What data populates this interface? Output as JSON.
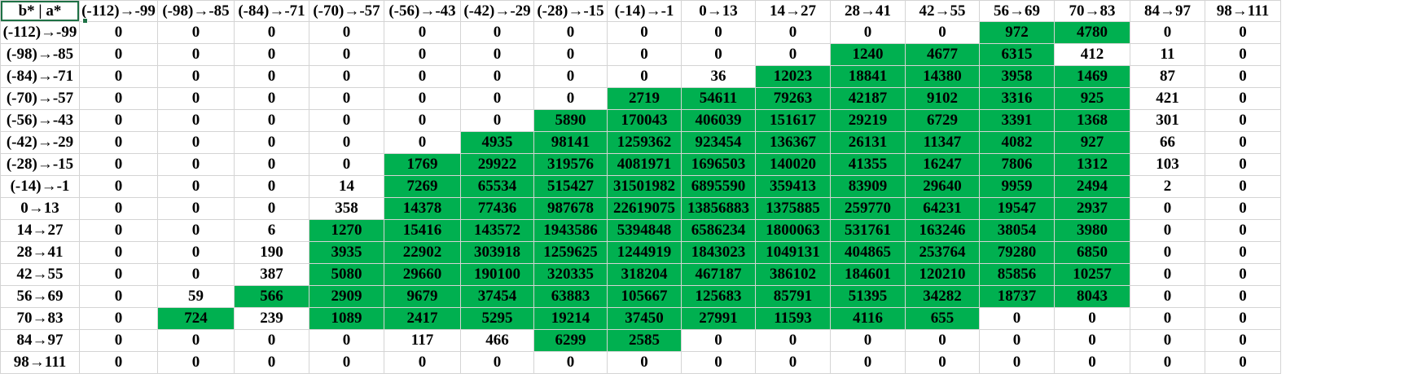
{
  "sheet": {
    "corner_label": "b* | a*",
    "col_headers": [
      "(-112)→-99",
      "(-98)→-85",
      "(-84)→-71",
      "(-70)→-57",
      "(-56)→-43",
      "(-42)→-29",
      "(-28)→-15",
      "(-14)→-1",
      "0→13",
      "14→27",
      "28→41",
      "42→55",
      "56→69",
      "70→83",
      "84→97",
      "98→111"
    ],
    "rows": [
      {
        "label": "(-112)→-99",
        "values": [
          "0",
          "0",
          "0",
          "0",
          "0",
          "0",
          "0",
          "0",
          "0",
          "0",
          "0",
          "0",
          "972",
          "4780",
          "0",
          "0"
        ]
      },
      {
        "label": "(-98)→-85",
        "values": [
          "0",
          "0",
          "0",
          "0",
          "0",
          "0",
          "0",
          "0",
          "0",
          "0",
          "1240",
          "4677",
          "6315",
          "412",
          "11",
          "0"
        ]
      },
      {
        "label": "(-84)→-71",
        "values": [
          "0",
          "0",
          "0",
          "0",
          "0",
          "0",
          "0",
          "0",
          "36",
          "12023",
          "18841",
          "14380",
          "3958",
          "1469",
          "87",
          "0"
        ]
      },
      {
        "label": "(-70)→-57",
        "values": [
          "0",
          "0",
          "0",
          "0",
          "0",
          "0",
          "0",
          "2719",
          "54611",
          "79263",
          "42187",
          "9102",
          "3316",
          "925",
          "421",
          "0"
        ]
      },
      {
        "label": "(-56)→-43",
        "values": [
          "0",
          "0",
          "0",
          "0",
          "0",
          "0",
          "5890",
          "170043",
          "406039",
          "151617",
          "29219",
          "6729",
          "3391",
          "1368",
          "301",
          "0"
        ]
      },
      {
        "label": "(-42)→-29",
        "values": [
          "0",
          "0",
          "0",
          "0",
          "0",
          "4935",
          "98141",
          "1259362",
          "923454",
          "136367",
          "26131",
          "11347",
          "4082",
          "927",
          "66",
          "0"
        ]
      },
      {
        "label": "(-28)→-15",
        "values": [
          "0",
          "0",
          "0",
          "0",
          "1769",
          "29922",
          "319576",
          "4081971",
          "1696503",
          "140020",
          "41355",
          "16247",
          "7806",
          "1312",
          "103",
          "0"
        ]
      },
      {
        "label": "(-14)→-1",
        "values": [
          "0",
          "0",
          "0",
          "14",
          "7269",
          "65534",
          "515427",
          "31501982",
          "6895590",
          "359413",
          "83909",
          "29640",
          "9959",
          "2494",
          "2",
          "0"
        ]
      },
      {
        "label": "0→13",
        "values": [
          "0",
          "0",
          "0",
          "358",
          "14378",
          "77436",
          "987678",
          "22619075",
          "13856883",
          "1375885",
          "259770",
          "64231",
          "19547",
          "2937",
          "0",
          "0"
        ]
      },
      {
        "label": "14→27",
        "values": [
          "0",
          "0",
          "6",
          "1270",
          "15416",
          "143572",
          "1943586",
          "5394848",
          "6586234",
          "1800063",
          "531761",
          "163246",
          "38054",
          "3980",
          "0",
          "0"
        ]
      },
      {
        "label": "28→41",
        "values": [
          "0",
          "0",
          "190",
          "3935",
          "22902",
          "303918",
          "1259625",
          "1244919",
          "1843023",
          "1049131",
          "404865",
          "253764",
          "79280",
          "6850",
          "0",
          "0"
        ]
      },
      {
        "label": "42→55",
        "values": [
          "0",
          "0",
          "387",
          "5080",
          "29660",
          "190100",
          "320335",
          "318204",
          "467187",
          "386102",
          "184601",
          "120210",
          "85856",
          "10257",
          "0",
          "0"
        ]
      },
      {
        "label": "56→69",
        "values": [
          "0",
          "59",
          "566",
          "2909",
          "9679",
          "37454",
          "63883",
          "105667",
          "125683",
          "85791",
          "51395",
          "34282",
          "18737",
          "8043",
          "0",
          "0"
        ]
      },
      {
        "label": "70→83",
        "values": [
          "0",
          "724",
          "239",
          "1089",
          "2417",
          "5295",
          "19214",
          "37450",
          "27991",
          "11593",
          "4116",
          "655",
          "0",
          "0",
          "0",
          "0"
        ]
      },
      {
        "label": "84→97",
        "values": [
          "0",
          "0",
          "0",
          "0",
          "117",
          "466",
          "6299",
          "2585",
          "0",
          "0",
          "0",
          "0",
          "0",
          "0",
          "0",
          "0"
        ]
      },
      {
        "label": "98→111",
        "values": [
          "0",
          "0",
          "0",
          "0",
          "0",
          "0",
          "0",
          "0",
          "0",
          "0",
          "0",
          "0",
          "0",
          "0",
          "0",
          "0"
        ]
      }
    ],
    "highlight_color": "#00b050",
    "highlighted_cells": [
      [
        0,
        12
      ],
      [
        0,
        13
      ],
      [
        1,
        10
      ],
      [
        1,
        11
      ],
      [
        1,
        12
      ],
      [
        2,
        9
      ],
      [
        2,
        10
      ],
      [
        2,
        11
      ],
      [
        2,
        12
      ],
      [
        2,
        13
      ],
      [
        3,
        7
      ],
      [
        3,
        8
      ],
      [
        3,
        9
      ],
      [
        3,
        10
      ],
      [
        3,
        11
      ],
      [
        3,
        12
      ],
      [
        3,
        13
      ],
      [
        4,
        6
      ],
      [
        4,
        7
      ],
      [
        4,
        8
      ],
      [
        4,
        9
      ],
      [
        4,
        10
      ],
      [
        4,
        11
      ],
      [
        4,
        12
      ],
      [
        4,
        13
      ],
      [
        5,
        5
      ],
      [
        5,
        6
      ],
      [
        5,
        7
      ],
      [
        5,
        8
      ],
      [
        5,
        9
      ],
      [
        5,
        10
      ],
      [
        5,
        11
      ],
      [
        5,
        12
      ],
      [
        5,
        13
      ],
      [
        6,
        4
      ],
      [
        6,
        5
      ],
      [
        6,
        6
      ],
      [
        6,
        7
      ],
      [
        6,
        8
      ],
      [
        6,
        9
      ],
      [
        6,
        10
      ],
      [
        6,
        11
      ],
      [
        6,
        12
      ],
      [
        6,
        13
      ],
      [
        7,
        4
      ],
      [
        7,
        5
      ],
      [
        7,
        6
      ],
      [
        7,
        7
      ],
      [
        7,
        8
      ],
      [
        7,
        9
      ],
      [
        7,
        10
      ],
      [
        7,
        11
      ],
      [
        7,
        12
      ],
      [
        7,
        13
      ],
      [
        8,
        4
      ],
      [
        8,
        5
      ],
      [
        8,
        6
      ],
      [
        8,
        7
      ],
      [
        8,
        8
      ],
      [
        8,
        9
      ],
      [
        8,
        10
      ],
      [
        8,
        11
      ],
      [
        8,
        12
      ],
      [
        8,
        13
      ],
      [
        9,
        3
      ],
      [
        9,
        4
      ],
      [
        9,
        5
      ],
      [
        9,
        6
      ],
      [
        9,
        7
      ],
      [
        9,
        8
      ],
      [
        9,
        9
      ],
      [
        9,
        10
      ],
      [
        9,
        11
      ],
      [
        9,
        12
      ],
      [
        9,
        13
      ],
      [
        10,
        3
      ],
      [
        10,
        4
      ],
      [
        10,
        5
      ],
      [
        10,
        6
      ],
      [
        10,
        7
      ],
      [
        10,
        8
      ],
      [
        10,
        9
      ],
      [
        10,
        10
      ],
      [
        10,
        11
      ],
      [
        10,
        12
      ],
      [
        10,
        13
      ],
      [
        11,
        3
      ],
      [
        11,
        4
      ],
      [
        11,
        5
      ],
      [
        11,
        6
      ],
      [
        11,
        7
      ],
      [
        11,
        8
      ],
      [
        11,
        9
      ],
      [
        11,
        10
      ],
      [
        11,
        11
      ],
      [
        11,
        12
      ],
      [
        11,
        13
      ],
      [
        12,
        2
      ],
      [
        12,
        3
      ],
      [
        12,
        4
      ],
      [
        12,
        5
      ],
      [
        12,
        6
      ],
      [
        12,
        7
      ],
      [
        12,
        8
      ],
      [
        12,
        9
      ],
      [
        12,
        10
      ],
      [
        12,
        11
      ],
      [
        12,
        12
      ],
      [
        12,
        13
      ],
      [
        13,
        1
      ],
      [
        13,
        3
      ],
      [
        13,
        4
      ],
      [
        13,
        5
      ],
      [
        13,
        6
      ],
      [
        13,
        7
      ],
      [
        13,
        8
      ],
      [
        13,
        9
      ],
      [
        13,
        10
      ],
      [
        13,
        11
      ],
      [
        14,
        6
      ],
      [
        14,
        7
      ]
    ]
  }
}
